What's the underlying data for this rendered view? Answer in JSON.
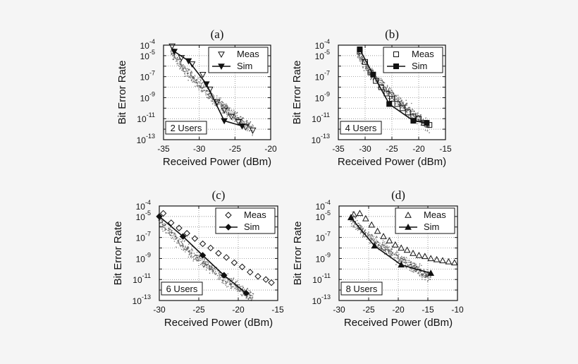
{
  "chart_data": [
    {
      "type": "scatter",
      "title": "(a)",
      "xlabel": "Received Power (dBm)",
      "ylabel": "Bit Error Rate",
      "xlim": [
        -35,
        -20
      ],
      "ylim_exp": [
        -13,
        -4
      ],
      "yscale": "log",
      "xticks": [
        "-35",
        "-30",
        "-25",
        "-20"
      ],
      "yticks_exp": [
        "-4",
        "-5",
        "-7",
        "-9",
        "-11",
        "-13"
      ],
      "grid": true,
      "legend_position": "top-right",
      "annotation": "2 Users",
      "series": [
        {
          "name": "Meas",
          "marker": "triangle-down-open",
          "x": [
            -33.8,
            -32.5,
            -31,
            -29.5,
            -28.5,
            -27.5,
            -26.5,
            -25.5,
            -24.5,
            -23.5,
            -22.5
          ],
          "y_exp": [
            -4.1,
            -5.2,
            -5.8,
            -6.8,
            -8.2,
            -9.4,
            -10.2,
            -10.8,
            -11.3,
            -11.8,
            -12.1
          ]
        },
        {
          "name": "Sim",
          "marker": "triangle-down-filled",
          "x": [
            -33.5,
            -31.5,
            -29,
            -26.5,
            -24
          ],
          "y_exp": [
            -4.6,
            -5.5,
            -7.7,
            -11.2,
            -11.7
          ]
        }
      ],
      "cloud": {
        "x_range": [
          -34,
          -22.5
        ],
        "y_start_exp": -4.3,
        "y_end_exp": -12
      }
    },
    {
      "type": "scatter",
      "title": "(b)",
      "xlabel": "Received Power (dBm)",
      "ylabel": "Bit Error Rate",
      "xlim": [
        -35,
        -15
      ],
      "ylim_exp": [
        -13,
        -4
      ],
      "yscale": "log",
      "xticks": [
        "-35",
        "-30",
        "-25",
        "-20",
        "-15"
      ],
      "yticks_exp": [
        "-4",
        "-5",
        "-7",
        "-9",
        "-11",
        "-13"
      ],
      "grid": true,
      "legend_position": "top-right",
      "annotation": "4 Users",
      "series": [
        {
          "name": "Meas",
          "marker": "square-open",
          "x": [
            -31,
            -30,
            -29,
            -28,
            -27,
            -26,
            -25,
            -24,
            -23,
            -22,
            -21,
            -20,
            -19,
            -18
          ],
          "y_exp": [
            -4.6,
            -5.6,
            -6.6,
            -7.4,
            -8.0,
            -8.6,
            -9.1,
            -9.6,
            -10.0,
            -10.4,
            -10.8,
            -11.0,
            -11.4,
            -11.6
          ]
        },
        {
          "name": "Sim",
          "marker": "square-filled",
          "x": [
            -31,
            -28.5,
            -25.5,
            -21,
            -18.5
          ],
          "y_exp": [
            -4.4,
            -6.8,
            -9.6,
            -11.2,
            -11.4
          ]
        }
      ],
      "cloud": {
        "x_range": [
          -31.5,
          -18
        ],
        "y_start_exp": -4.5,
        "y_end_exp": -11.8
      }
    },
    {
      "type": "scatter",
      "title": "(c)",
      "xlabel": "Received Power (dBm)",
      "ylabel": "Bit Error Rate",
      "xlim": [
        -30,
        -15
      ],
      "ylim_exp": [
        -13,
        -4
      ],
      "yscale": "log",
      "xticks": [
        "-30",
        "-25",
        "-20",
        "-15"
      ],
      "yticks_exp": [
        "-4",
        "-5",
        "-7",
        "-9",
        "-11",
        "-13"
      ],
      "grid": true,
      "legend_position": "top-right",
      "annotation": "6 Users",
      "series": [
        {
          "name": "Meas",
          "marker": "diamond-open",
          "x": [
            -29.5,
            -28.5,
            -27.5,
            -26.5,
            -25.5,
            -24.5,
            -23.5,
            -22.5,
            -21.5,
            -20.5,
            -19.5,
            -18.5,
            -17.5,
            -16.5,
            -15.8
          ],
          "y_exp": [
            -4.7,
            -5.6,
            -6.1,
            -6.6,
            -7.1,
            -7.6,
            -8.0,
            -8.5,
            -8.9,
            -9.4,
            -9.8,
            -10.3,
            -10.7,
            -11.0,
            -11.3
          ]
        },
        {
          "name": "Sim",
          "marker": "diamond-filled",
          "x": [
            -30,
            -27,
            -24.5,
            -21.8,
            -19
          ],
          "y_exp": [
            -5.0,
            -6.9,
            -8.7,
            -10.6,
            -12.3
          ]
        }
      ],
      "cloud": {
        "x_range": [
          -30,
          -18
        ],
        "y_start_exp": -5,
        "y_end_exp": -12.8
      }
    },
    {
      "type": "scatter",
      "title": "(d)",
      "xlabel": "Received Power (dBm)",
      "ylabel": "Bit Error Rate",
      "xlim": [
        -30,
        -10
      ],
      "ylim_exp": [
        -13,
        -4
      ],
      "yscale": "log",
      "xticks": [
        "-30",
        "-25",
        "-20",
        "-15",
        "-10"
      ],
      "yticks_exp": [
        "-4",
        "-5",
        "-7",
        "-9",
        "-11",
        "-13"
      ],
      "grid": true,
      "legend_position": "top-right",
      "annotation": "8 Users",
      "series": [
        {
          "name": "Meas",
          "marker": "triangle-up-open",
          "x": [
            -27.5,
            -26.5,
            -25.5,
            -24.5,
            -23.5,
            -22.5,
            -21.5,
            -20.5,
            -19.5,
            -18.5,
            -17.5,
            -16.5,
            -15.5,
            -14.5,
            -13.5,
            -12.5,
            -11.5,
            -10.5
          ],
          "y_exp": [
            -4.8,
            -4.7,
            -5.2,
            -5.8,
            -6.4,
            -6.9,
            -7.3,
            -7.7,
            -8.0,
            -8.2,
            -8.5,
            -8.7,
            -8.8,
            -9.0,
            -9.1,
            -9.2,
            -9.3,
            -9.4
          ]
        },
        {
          "name": "Sim",
          "marker": "triangle-up-filled",
          "x": [
            -28,
            -24,
            -19.5,
            -14.5
          ],
          "y_exp": [
            -5.1,
            -7.8,
            -9.6,
            -10.4
          ]
        }
      ],
      "cloud": {
        "x_range": [
          -28,
          -14.5
        ],
        "y_start_exp": -5,
        "y_end_exp": -10.8
      }
    }
  ]
}
